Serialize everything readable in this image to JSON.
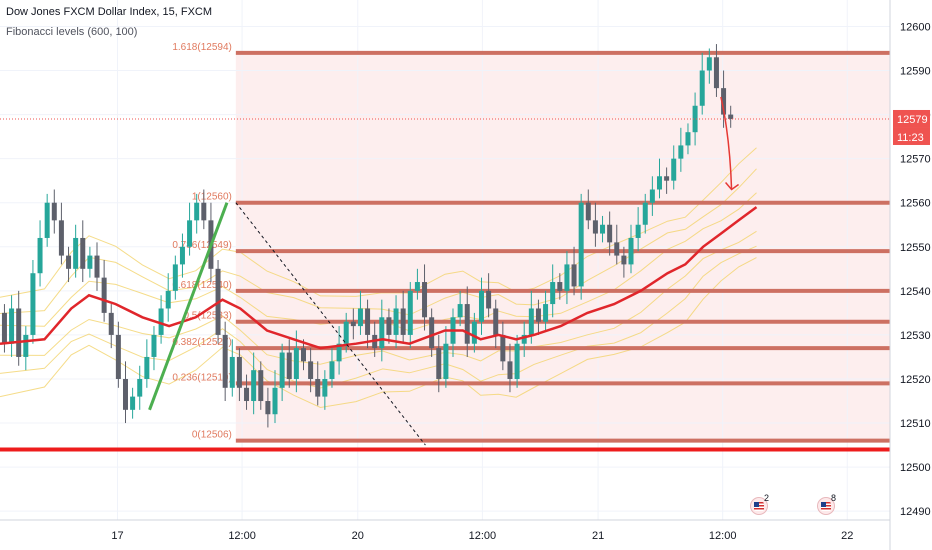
{
  "header": {
    "title": "Dow Jones FXCM Dollar Index, 15, FXCM",
    "subtitle": "Fibonacci levels (600, 100)"
  },
  "price_axis": {
    "ticks": [
      "12600",
      "12590",
      "12580",
      "12570",
      "12560",
      "12550",
      "12540",
      "12530",
      "12520",
      "12510",
      "12500",
      "12490"
    ],
    "last_price_label": "12579",
    "countdown_label": "11:23"
  },
  "time_axis": {
    "labels": [
      "17",
      "12:00",
      "20",
      "12:00",
      "21",
      "12:00",
      "22"
    ]
  },
  "events": [
    {
      "name": "us-economic-event-icon",
      "count": "2"
    },
    {
      "name": "us-economic-event-icon",
      "count": "8"
    }
  ],
  "colors": {
    "fib_line": "#cd7062",
    "fib_label": "#e07a5f",
    "ma_line": "#e0262b",
    "support_line": "#ee1c1c",
    "band_line": "#f2d36b",
    "candle_up": "#26a69a",
    "candle_down": "#5d606b",
    "fib_zone": "#fdeeee",
    "price_tag": "#ef5350"
  },
  "chart_data": {
    "type": "candlestick",
    "title": "Dow Jones FXCM Dollar Index, 15, FXCM",
    "indicator": "Fibonacci levels (600, 100)",
    "ylim": [
      12488,
      12606
    ],
    "y_ticks": [
      12600,
      12590,
      12580,
      12570,
      12560,
      12550,
      12540,
      12530,
      12520,
      12510,
      12500,
      12490
    ],
    "x_ticks": [
      "17",
      "12:00",
      "20",
      "12:00",
      "21",
      "12:00",
      "22"
    ],
    "last_price": 12579,
    "fibonacci_levels": [
      {
        "ratio": "1.618",
        "value": 12594,
        "label": "1.618(12594)"
      },
      {
        "ratio": "1",
        "value": 12560,
        "label": "1(12560)"
      },
      {
        "ratio": "0.786",
        "value": 12549,
        "label": "0.786(12549)"
      },
      {
        "ratio": "0.618",
        "value": 12540,
        "label": "0.618(12540)"
      },
      {
        "ratio": "0.5",
        "value": 12533,
        "label": "0.5(12533)"
      },
      {
        "ratio": "0.382",
        "value": 12527,
        "label": "0.382(12527)"
      },
      {
        "ratio": "0.236",
        "value": 12519,
        "label": "0.236(12519)"
      },
      {
        "ratio": "0",
        "value": 12506,
        "label": "0(12506)"
      }
    ],
    "support_line": 12504,
    "moving_average": {
      "name": "",
      "x": [
        0,
        0.05,
        0.08,
        0.1,
        0.13,
        0.16,
        0.19,
        0.22,
        0.25,
        0.27,
        0.3,
        0.33,
        0.36,
        0.4,
        0.43,
        0.46,
        0.5,
        0.52,
        0.54,
        0.56,
        0.58,
        0.6,
        0.63,
        0.66,
        0.69,
        0.72,
        0.75,
        0.77,
        0.79,
        0.81,
        0.83,
        0.85
      ],
      "y": [
        12528,
        12529,
        12536,
        12539,
        12537,
        12534,
        12532,
        12534,
        12538,
        12536,
        12531,
        12529,
        12527,
        12528,
        12529,
        12528,
        12531,
        12531,
        12529,
        12530,
        12529,
        12530,
        12532,
        12535,
        12537,
        12540,
        12544,
        12546,
        12550,
        12553,
        12556,
        12559
      ]
    },
    "candles": {
      "x": [
        0.005,
        0.013,
        0.021,
        0.029,
        0.037,
        0.045,
        0.053,
        0.061,
        0.069,
        0.077,
        0.085,
        0.093,
        0.101,
        0.109,
        0.117,
        0.125,
        0.133,
        0.141,
        0.149,
        0.157,
        0.165,
        0.173,
        0.181,
        0.189,
        0.197,
        0.205,
        0.213,
        0.221,
        0.229,
        0.237,
        0.245,
        0.253,
        0.261,
        0.269,
        0.277,
        0.285,
        0.293,
        0.301,
        0.309,
        0.317,
        0.325,
        0.333,
        0.341,
        0.349,
        0.357,
        0.365,
        0.373,
        0.381,
        0.389,
        0.397,
        0.405,
        0.413,
        0.421,
        0.429,
        0.437,
        0.445,
        0.453,
        0.461,
        0.469,
        0.477,
        0.485,
        0.493,
        0.501,
        0.509,
        0.517,
        0.525,
        0.533,
        0.541,
        0.549,
        0.557,
        0.565,
        0.573,
        0.581,
        0.589,
        0.597,
        0.605,
        0.613,
        0.621,
        0.629,
        0.637,
        0.645,
        0.653,
        0.661,
        0.669,
        0.677,
        0.685,
        0.693,
        0.701,
        0.709,
        0.717,
        0.725,
        0.733,
        0.741,
        0.749,
        0.757,
        0.765,
        0.773,
        0.781,
        0.789,
        0.797,
        0.805,
        0.813,
        0.821
      ],
      "open": [
        12535,
        12528,
        12536,
        12525,
        12530,
        12544,
        12552,
        12560,
        12556,
        12548,
        12545,
        12552,
        12545,
        12548,
        12543,
        12535,
        12530,
        12520,
        12513,
        12516,
        12520,
        12525,
        12530,
        12536,
        12540,
        12546,
        12550,
        12556,
        12560,
        12556,
        12545,
        12530,
        12518,
        12525,
        12518,
        12515,
        12522,
        12515,
        12512,
        12518,
        12526,
        12520,
        12527,
        12524,
        12520,
        12516,
        12520,
        12524,
        12528,
        12533,
        12532,
        12536,
        12530,
        12527,
        12534,
        12530,
        12536,
        12530,
        12540,
        12542,
        12534,
        12527,
        12520,
        12528,
        12534,
        12537,
        12528,
        12533,
        12540,
        12536,
        12530,
        12524,
        12520,
        12528,
        12530,
        12536,
        12533,
        12537,
        12542,
        12540,
        12546,
        12541,
        12560,
        12556,
        12553,
        12555,
        12551,
        12548,
        12546,
        12552,
        12555,
        12560,
        12563,
        12566,
        12565,
        12570,
        12573,
        12576,
        12582,
        12590,
        12593,
        12586,
        12580
      ],
      "close": [
        12528,
        12536,
        12525,
        12530,
        12544,
        12552,
        12560,
        12556,
        12548,
        12545,
        12552,
        12545,
        12548,
        12543,
        12535,
        12530,
        12520,
        12513,
        12516,
        12520,
        12525,
        12530,
        12536,
        12540,
        12546,
        12550,
        12556,
        12560,
        12556,
        12545,
        12530,
        12518,
        12525,
        12518,
        12515,
        12522,
        12515,
        12512,
        12518,
        12526,
        12520,
        12527,
        12524,
        12520,
        12516,
        12520,
        12524,
        12528,
        12533,
        12532,
        12536,
        12530,
        12527,
        12534,
        12530,
        12536,
        12530,
        12540,
        12542,
        12534,
        12527,
        12520,
        12528,
        12534,
        12537,
        12528,
        12533,
        12540,
        12536,
        12530,
        12524,
        12520,
        12528,
        12530,
        12536,
        12533,
        12537,
        12542,
        12540,
        12546,
        12541,
        12560,
        12556,
        12553,
        12555,
        12551,
        12548,
        12546,
        12552,
        12555,
        12560,
        12563,
        12566,
        12565,
        12570,
        12573,
        12576,
        12582,
        12590,
        12593,
        12586,
        12580,
        12579
      ]
    }
  }
}
